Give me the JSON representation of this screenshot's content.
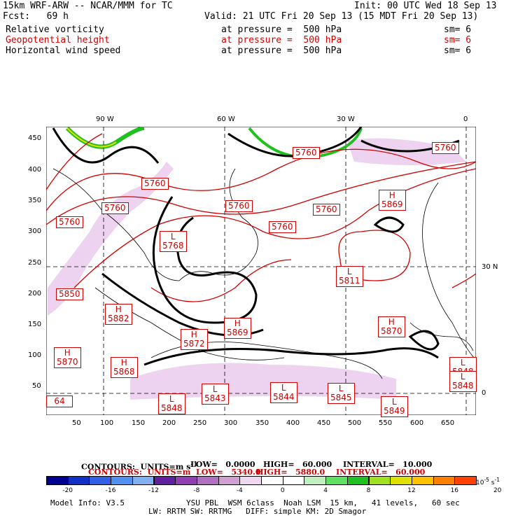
{
  "header": {
    "model": "15km WRF-ARW -- NCAR/MMM for TC",
    "init": "Init: 00 UTC Wed 18 Sep 13",
    "fcst": "Fcst:   69 h",
    "valid": "Valid: 21 UTC Fri 20 Sep 13 (15 MDT Fri 20 Sep 13)"
  },
  "fields": [
    {
      "name": "Relative vorticity",
      "level": "at pressure =  500 hPa",
      "sm": "sm= 6",
      "color": "#000000"
    },
    {
      "name": "Geopotential height",
      "level": "at pressure =  500 hPa",
      "sm": "sm= 6",
      "color": "#d00000"
    },
    {
      "name": "Horizontal wind speed",
      "level": "at pressure =  500 hPa",
      "sm": "sm= 6",
      "color": "#000000"
    }
  ],
  "map": {
    "top_lon_labels": [
      "90 W",
      "60 W",
      "30 W",
      "0"
    ],
    "right_lat_labels": [
      "30 N",
      "0"
    ],
    "y_ticks": [
      "450",
      "400",
      "350",
      "300",
      "250",
      "200",
      "150",
      "100",
      "50"
    ],
    "x_ticks": [
      "50",
      "100",
      "150",
      "200",
      "250",
      "300",
      "350",
      "400",
      "450",
      "500",
      "550",
      "600",
      "650"
    ],
    "height_labels": [
      {
        "type": "",
        "value": "5760"
      },
      {
        "type": "",
        "value": "5760"
      },
      {
        "type": "",
        "value": "5760"
      },
      {
        "type": "",
        "value": "5760"
      },
      {
        "type": "",
        "value": "5760"
      },
      {
        "type": "",
        "value": "5760"
      },
      {
        "type": "",
        "value": "5760"
      },
      {
        "type": "",
        "value": "5760"
      },
      {
        "type": "H",
        "value": "5869"
      },
      {
        "type": "L",
        "value": "5768"
      },
      {
        "type": "L",
        "value": "5811"
      },
      {
        "type": "",
        "value": "5850"
      },
      {
        "type": "H",
        "value": "5882"
      },
      {
        "type": "H",
        "value": "5869"
      },
      {
        "type": "H",
        "value": "5872"
      },
      {
        "type": "H",
        "value": "5870"
      },
      {
        "type": "H",
        "value": "5870"
      },
      {
        "type": "H",
        "value": "5868"
      },
      {
        "type": "L",
        "value": "5848"
      },
      {
        "type": "L",
        "value": "5843"
      },
      {
        "type": "L",
        "value": "5844"
      },
      {
        "type": "L",
        "value": "5845"
      },
      {
        "type": "L",
        "value": "5849"
      },
      {
        "type": "L",
        "value": "5848"
      },
      {
        "type": "L",
        "value": "5848"
      },
      {
        "type": "",
        "value": "64"
      }
    ]
  },
  "contours": {
    "black": {
      "label": "CONTOURS:  UNITS=m s",
      "sup": "-1",
      "low": "LOW=   0.0000",
      "high": "HIGH=   60.000",
      "interval": "INTERVAL=   10.000"
    },
    "red": {
      "label": "CONTOURS:  UNITS=m  LOW=   5340.0",
      "high": "HIGH=   5880.0",
      "interval": "INTERVAL=   60.000"
    }
  },
  "colorbar": {
    "colors": [
      "#000090",
      "#1030c8",
      "#3060e8",
      "#5090f0",
      "#80b0f0",
      "#6020a0",
      "#9040b0",
      "#b070c0",
      "#d0a0d0",
      "#f0d8f0",
      "#ffffff",
      "#ffffff",
      "#c0f0c0",
      "#60e060",
      "#20c020",
      "#a0e020",
      "#e0e000",
      "#ffc000",
      "#ff8000",
      "#ff4000"
    ],
    "labels": [
      "-20",
      "-16",
      "-12",
      "-8",
      "-4",
      "0",
      "4",
      "8",
      "12",
      "16",
      "20"
    ],
    "units": "10",
    "units_exp": "-5",
    "units_suffix": " s",
    "units_suffix_exp": "-1"
  },
  "footer": {
    "model_info": "Model Info: V3.5",
    "line1": "YSU PBL  WSM 6class  Noah LSM  15 km,   41 levels,   60 sec",
    "line2": "LW: RRTM SW: RRTMG   DIFF: simple KM: 2D Smagor"
  }
}
